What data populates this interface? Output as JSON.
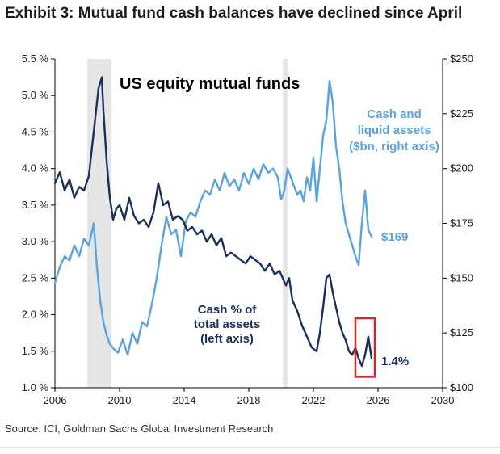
{
  "title": "Exhibit 3: Mutual fund cash balances have declined since April",
  "source": "Source: ICI, Goldman Sachs Global Investment Research",
  "chart_data": {
    "type": "line",
    "panel_title": "US equity mutual funds",
    "x_ticks": [
      "2006",
      "2010",
      "2014",
      "2018",
      "2022",
      "2026",
      "2030"
    ],
    "xlim": [
      2006,
      2030
    ],
    "y_left_ticks": [
      "1.0 %",
      "1.5 %",
      "2.0 %",
      "2.5 %",
      "3.0 %",
      "3.5 %",
      "4.0 %",
      "4.5 %",
      "5.0 %",
      "5.5 %"
    ],
    "y_left_lim": [
      1.0,
      5.5
    ],
    "y_right_ticks": [
      "$100",
      "$125",
      "$150",
      "$175",
      "$200",
      "$225",
      "$250"
    ],
    "y_right_lim": [
      100,
      250
    ],
    "recession_shading": [
      [
        2008.0,
        2009.5
      ],
      [
        2020.1,
        2020.4
      ]
    ],
    "grid": false,
    "colors": {
      "cash_pct": "#1b2f5a",
      "cash_assets": "#5aa3dc",
      "shading": "#e6e6e6",
      "highlight": "#d9262b"
    },
    "series": [
      {
        "name": "Cash % of total assets (left axis)",
        "axis": "left",
        "label_lines": [
          "Cash % of",
          "total assets",
          "(left axis)"
        ],
        "end_label": "1.4%",
        "x": [
          2006.0,
          2006.3,
          2006.6,
          2006.9,
          2007.2,
          2007.5,
          2007.8,
          2008.1,
          2008.3,
          2008.5,
          2008.7,
          2008.9,
          2009.0,
          2009.2,
          2009.4,
          2009.6,
          2009.8,
          2010.0,
          2010.3,
          2010.6,
          2010.9,
          2011.2,
          2011.5,
          2011.8,
          2012.1,
          2012.4,
          2012.7,
          2013.0,
          2013.3,
          2013.6,
          2013.9,
          2014.2,
          2014.5,
          2014.8,
          2015.1,
          2015.4,
          2015.7,
          2016.0,
          2016.3,
          2016.6,
          2016.9,
          2017.2,
          2017.5,
          2017.8,
          2018.1,
          2018.4,
          2018.7,
          2019.0,
          2019.3,
          2019.6,
          2019.9,
          2020.1,
          2020.3,
          2020.5,
          2020.7,
          2021.0,
          2021.3,
          2021.6,
          2021.9,
          2022.2,
          2022.4,
          2022.6,
          2022.8,
          2023.0,
          2023.2,
          2023.4,
          2023.6,
          2023.8,
          2024.0,
          2024.2,
          2024.4,
          2024.6,
          2024.8,
          2025.0,
          2025.2,
          2025.4,
          2025.6
        ],
        "values": [
          3.8,
          3.95,
          3.7,
          3.85,
          3.6,
          3.75,
          3.7,
          3.9,
          4.3,
          4.7,
          5.1,
          5.25,
          4.8,
          4.1,
          3.6,
          3.3,
          3.45,
          3.5,
          3.3,
          3.6,
          3.35,
          3.25,
          3.3,
          3.2,
          3.4,
          3.8,
          3.5,
          3.55,
          3.3,
          3.35,
          3.3,
          3.15,
          3.2,
          3.1,
          3.15,
          3.0,
          3.1,
          2.95,
          3.05,
          2.8,
          2.85,
          2.8,
          2.75,
          2.7,
          2.8,
          2.75,
          2.7,
          2.6,
          2.7,
          2.55,
          2.6,
          2.5,
          2.4,
          2.5,
          2.2,
          2.05,
          1.85,
          1.7,
          1.55,
          1.5,
          1.75,
          2.1,
          2.5,
          2.55,
          2.3,
          2.1,
          1.9,
          1.75,
          1.65,
          1.5,
          1.45,
          1.55,
          1.4,
          1.3,
          1.45,
          1.7,
          1.4
        ]
      },
      {
        "name": "Cash and liquid assets ($bn, right axis)",
        "axis": "right",
        "label_lines": [
          "Cash and",
          "liquid assets",
          "($bn, right axis)"
        ],
        "end_label": "$169",
        "x": [
          2006.0,
          2006.3,
          2006.6,
          2006.9,
          2007.2,
          2007.5,
          2007.8,
          2008.1,
          2008.4,
          2008.6,
          2008.8,
          2009.0,
          2009.2,
          2009.4,
          2009.6,
          2009.9,
          2010.2,
          2010.5,
          2010.8,
          2011.1,
          2011.4,
          2011.7,
          2012.0,
          2012.3,
          2012.6,
          2012.9,
          2013.2,
          2013.5,
          2013.8,
          2014.1,
          2014.4,
          2014.7,
          2015.0,
          2015.3,
          2015.6,
          2015.9,
          2016.2,
          2016.5,
          2016.8,
          2017.1,
          2017.4,
          2017.7,
          2018.0,
          2018.3,
          2018.6,
          2018.9,
          2019.2,
          2019.5,
          2019.8,
          2020.0,
          2020.2,
          2020.4,
          2020.6,
          2020.8,
          2021.0,
          2021.2,
          2021.4,
          2021.6,
          2021.8,
          2022.0,
          2022.2,
          2022.4,
          2022.6,
          2022.8,
          2023.0,
          2023.2,
          2023.4,
          2023.6,
          2023.8,
          2024.0,
          2024.2,
          2024.4,
          2024.6,
          2024.8,
          2025.0,
          2025.2,
          2025.4,
          2025.6
        ],
        "values": [
          148,
          155,
          160,
          158,
          165,
          160,
          168,
          165,
          175,
          155,
          140,
          130,
          124,
          120,
          118,
          116,
          122,
          115,
          125,
          120,
          130,
          128,
          138,
          150,
          165,
          178,
          170,
          172,
          160,
          176,
          180,
          178,
          185,
          190,
          188,
          195,
          190,
          198,
          192,
          195,
          190,
          198,
          193,
          200,
          195,
          202,
          198,
          200,
          196,
          186,
          190,
          200,
          196,
          192,
          188,
          190,
          185,
          196,
          190,
          205,
          185,
          200,
          215,
          222,
          240,
          230,
          210,
          200,
          185,
          175,
          170,
          165,
          160,
          156,
          175,
          190,
          172,
          169
        ]
      }
    ],
    "highlight_box": {
      "x_range": [
        2024.6,
        2025.8
      ],
      "y_range": [
        1.15,
        1.95
      ]
    }
  }
}
